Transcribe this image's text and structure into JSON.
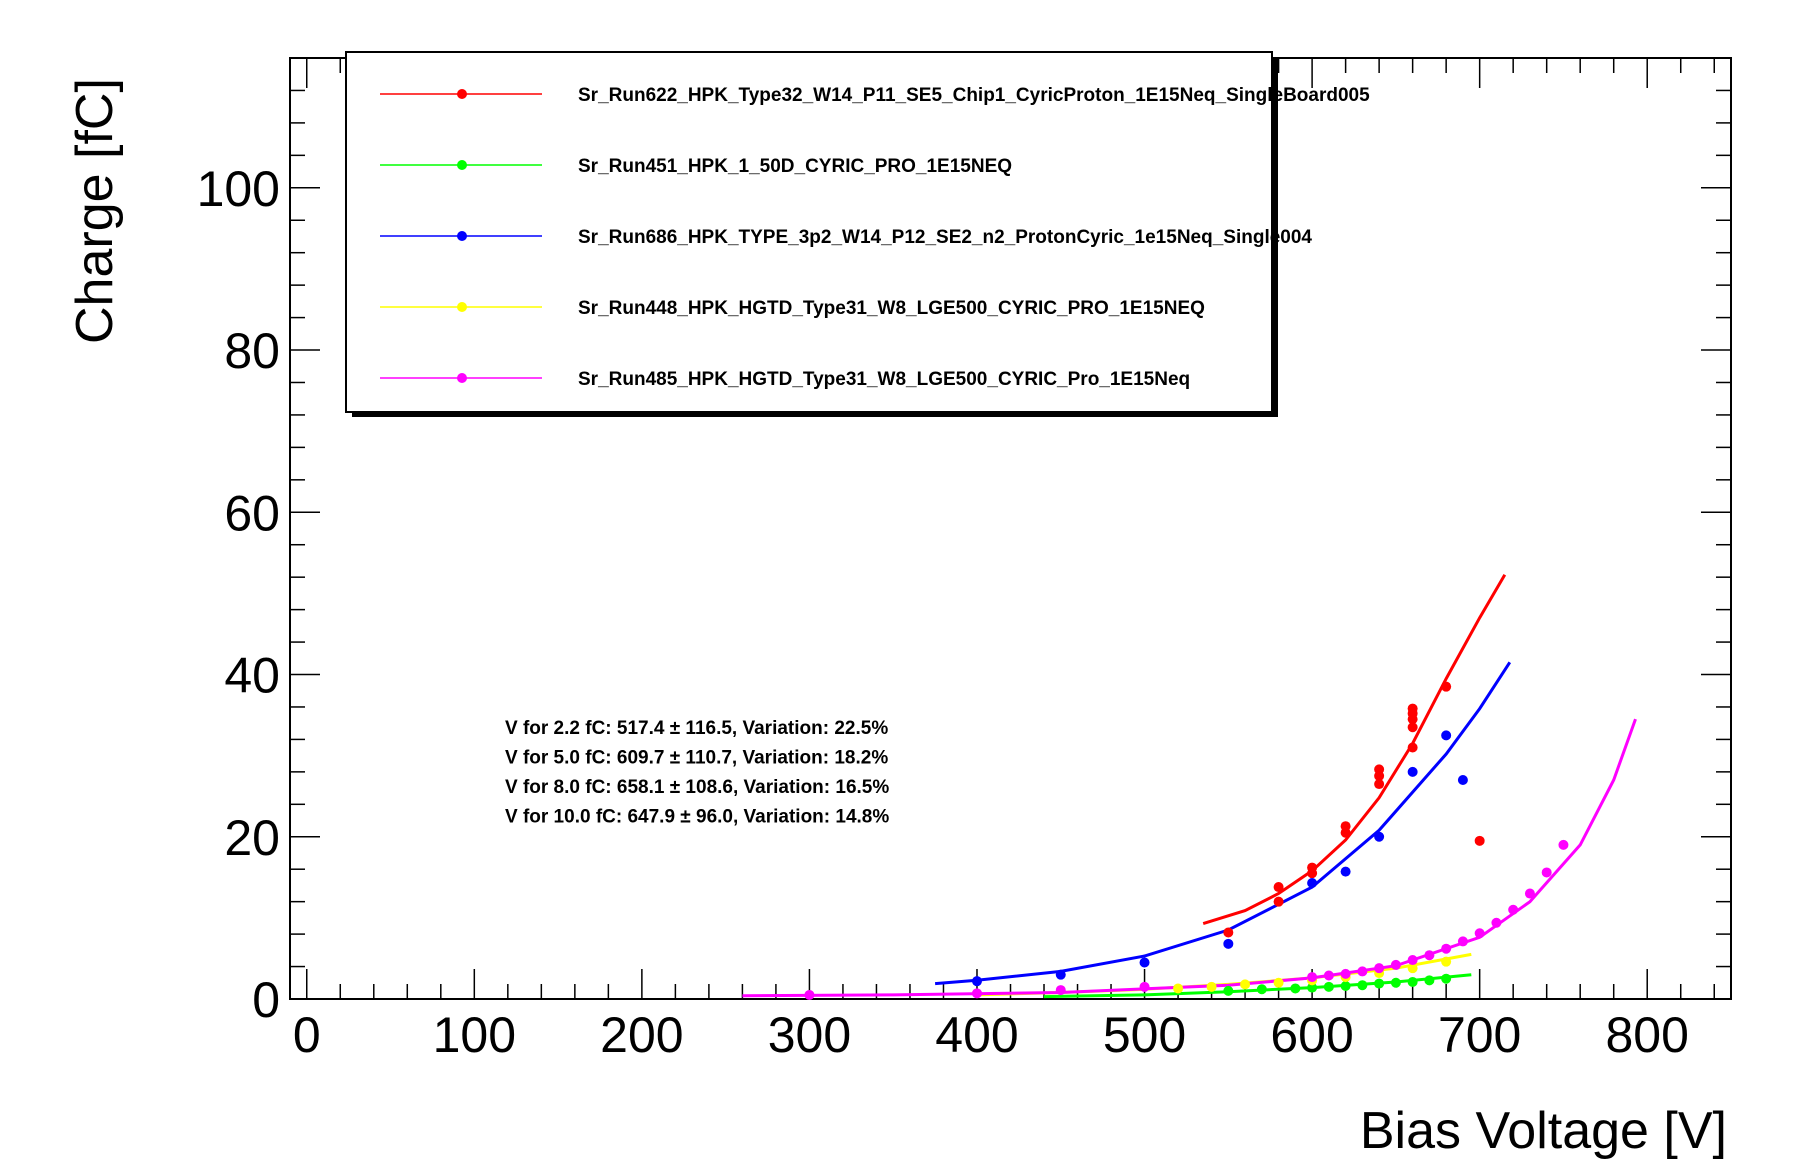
{
  "chart_data": {
    "type": "scatter",
    "title": "",
    "xlabel": "Bias Voltage [V]",
    "ylabel": "Charge [fC]",
    "xlim": [
      -10,
      850
    ],
    "ylim": [
      0,
      116
    ],
    "x_ticks": [
      0,
      100,
      200,
      300,
      400,
      500,
      600,
      700,
      800
    ],
    "y_ticks": [
      0,
      20,
      40,
      60,
      80,
      100
    ],
    "grid": false,
    "legend_position": "top",
    "series": [
      {
        "name": "Sr_Run622_HPK_Type32_W14_P11_SE5_Chip1_CyricProton_1E15Neq_SingleBoard005",
        "color": "#ff0000",
        "points": [
          [
            550,
            8.2
          ],
          [
            580,
            12
          ],
          [
            580,
            13.8
          ],
          [
            600,
            15.5
          ],
          [
            600,
            16.2
          ],
          [
            620,
            20.5
          ],
          [
            620,
            21.3
          ],
          [
            640,
            26.5
          ],
          [
            640,
            27.5
          ],
          [
            640,
            28.3
          ],
          [
            660,
            31
          ],
          [
            660,
            33.5
          ],
          [
            660,
            34.5
          ],
          [
            660,
            35.2
          ],
          [
            660,
            35.8
          ],
          [
            680,
            38.5
          ],
          [
            700,
            19.5
          ]
        ],
        "fit": [
          [
            535,
            9.3
          ],
          [
            560,
            10.9
          ],
          [
            580,
            13.0
          ],
          [
            600,
            15.8
          ],
          [
            620,
            19.6
          ],
          [
            640,
            24.8
          ],
          [
            660,
            31.5
          ],
          [
            680,
            39.5
          ],
          [
            700,
            47.0
          ],
          [
            715,
            52.3
          ]
        ]
      },
      {
        "name": "Sr_Run451_HPK_1_50D_CYRIC_PRO_1E15NEQ",
        "color": "#00ff00",
        "points": [
          [
            550,
            1.0
          ],
          [
            570,
            1.2
          ],
          [
            590,
            1.3
          ],
          [
            600,
            1.4
          ],
          [
            610,
            1.5
          ],
          [
            620,
            1.6
          ],
          [
            630,
            1.7
          ],
          [
            640,
            1.9
          ],
          [
            650,
            2.0
          ],
          [
            660,
            2.1
          ],
          [
            670,
            2.3
          ],
          [
            680,
            2.5
          ]
        ],
        "fit": [
          [
            440,
            0.3
          ],
          [
            500,
            0.5
          ],
          [
            550,
            0.9
          ],
          [
            600,
            1.4
          ],
          [
            650,
            2.1
          ],
          [
            695,
            3.0
          ]
        ]
      },
      {
        "name": "Sr_Run686_HPK_TYPE_3p2_W14_P12_SE2_n2_ProtonCyric_1e15Neq_Single004",
        "color": "#0000ff",
        "points": [
          [
            400,
            2.2
          ],
          [
            450,
            3.0
          ],
          [
            500,
            4.5
          ],
          [
            550,
            6.8
          ],
          [
            600,
            14.3
          ],
          [
            620,
            15.7
          ],
          [
            640,
            20.0
          ],
          [
            660,
            28.0
          ],
          [
            680,
            32.5
          ],
          [
            690,
            27.0
          ]
        ],
        "fit": [
          [
            375,
            1.9
          ],
          [
            400,
            2.3
          ],
          [
            450,
            3.4
          ],
          [
            500,
            5.3
          ],
          [
            550,
            8.5
          ],
          [
            600,
            13.8
          ],
          [
            640,
            20.8
          ],
          [
            680,
            30.2
          ],
          [
            700,
            35.8
          ],
          [
            718,
            41.5
          ]
        ]
      },
      {
        "name": "Sr_Run448_HPK_HGTD_Type31_W8_LGE500_CYRIC_PRO_1E15NEQ",
        "color": "#ffff00",
        "points": [
          [
            520,
            1.3
          ],
          [
            540,
            1.5
          ],
          [
            560,
            1.8
          ],
          [
            580,
            2.0
          ],
          [
            600,
            2.3
          ],
          [
            620,
            2.7
          ],
          [
            640,
            3.2
          ],
          [
            660,
            3.8
          ],
          [
            680,
            4.6
          ]
        ],
        "fit": [
          [
            400,
            0.5
          ],
          [
            450,
            0.8
          ],
          [
            500,
            1.2
          ],
          [
            550,
            1.8
          ],
          [
            600,
            2.6
          ],
          [
            650,
            3.8
          ],
          [
            695,
            5.5
          ]
        ]
      },
      {
        "name": "Sr_Run485_HPK_HGTD_Type31_W8_LGE500_CYRIC_Pro_1E15Neq",
        "color": "#ff00ff",
        "points": [
          [
            300,
            0.5
          ],
          [
            400,
            0.7
          ],
          [
            450,
            1.1
          ],
          [
            500,
            1.5
          ],
          [
            600,
            2.7
          ],
          [
            610,
            2.9
          ],
          [
            620,
            3.1
          ],
          [
            630,
            3.4
          ],
          [
            640,
            3.8
          ],
          [
            650,
            4.2
          ],
          [
            660,
            4.8
          ],
          [
            670,
            5.4
          ],
          [
            680,
            6.2
          ],
          [
            690,
            7.1
          ],
          [
            700,
            8.1
          ],
          [
            710,
            9.4
          ],
          [
            720,
            11.0
          ],
          [
            730,
            13.0
          ],
          [
            740,
            15.6
          ],
          [
            750,
            19.0
          ]
        ],
        "fit": [
          [
            260,
            0.4
          ],
          [
            350,
            0.5
          ],
          [
            450,
            0.8
          ],
          [
            550,
            1.7
          ],
          [
            600,
            2.6
          ],
          [
            650,
            4.1
          ],
          [
            700,
            7.6
          ],
          [
            730,
            12.0
          ],
          [
            760,
            19.0
          ],
          [
            780,
            27.0
          ],
          [
            793,
            34.5
          ]
        ]
      }
    ],
    "annotations": [
      "V for 2.2 fC: 517.4 ± 116.5, Variation: 22.5%",
      "V for 5.0 fC: 609.7 ± 110.7, Variation: 18.2%",
      "V for 8.0 fC: 658.1 ± 108.6, Variation: 16.5%",
      "V for 10.0 fC: 647.9 ± 96.0, Variation: 14.8%"
    ]
  }
}
